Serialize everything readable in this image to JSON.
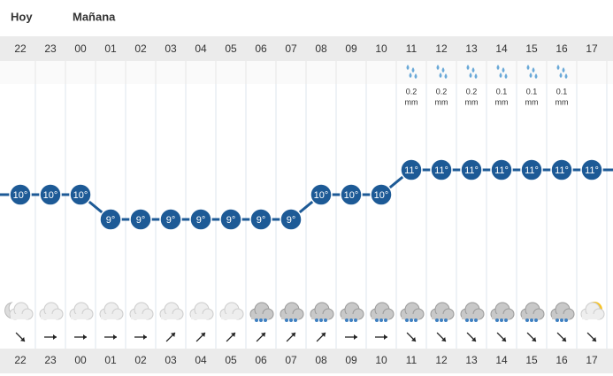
{
  "days": [
    "Hoy",
    "Mañana"
  ],
  "chart_data": {
    "type": "line",
    "categories": [
      "22",
      "23",
      "00",
      "01",
      "02",
      "03",
      "04",
      "05",
      "06",
      "07",
      "08",
      "09",
      "10",
      "11",
      "12",
      "13",
      "14",
      "15",
      "16",
      "17"
    ],
    "values": [
      10,
      10,
      10,
      9,
      9,
      9,
      9,
      9,
      9,
      9,
      10,
      10,
      10,
      11,
      11,
      11,
      11,
      11,
      11,
      11
    ],
    "value_labels": [
      "10°",
      "10°",
      "10°",
      "9°",
      "9°",
      "9°",
      "9°",
      "9°",
      "9°",
      "9°",
      "10°",
      "10°",
      "10°",
      "11°",
      "11°",
      "11°",
      "11°",
      "11°",
      "11°",
      "11°"
    ],
    "color": "#1d5a96",
    "precipitation": [
      null,
      null,
      null,
      null,
      null,
      null,
      null,
      null,
      null,
      null,
      null,
      null,
      null,
      0.2,
      0.2,
      0.2,
      0.1,
      0.1,
      0.1,
      null
    ],
    "precipitation_unit": "mm"
  }
}
